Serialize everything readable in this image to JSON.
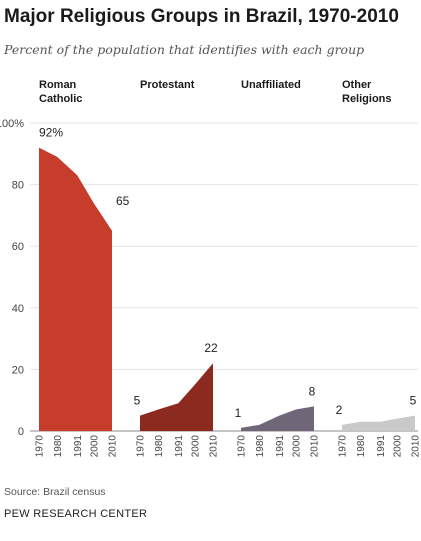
{
  "header": {
    "title": "Major Religious Groups in Brazil, 1970-2010",
    "subtitle": "Percent of the population that identifies with each group"
  },
  "footer": {
    "source": "Source: Brazil census",
    "org": "PEW RESEARCH CENTER"
  },
  "chart_data": {
    "type": "area",
    "title": "Major Religious Groups in Brazil, 1970-2010",
    "subtitle": "Percent of the population that identifies with each group",
    "x": [
      "1970",
      "1980",
      "1991",
      "2000",
      "2010"
    ],
    "ylim": [
      0,
      100
    ],
    "y_ticks": [
      "100%",
      "80",
      "60",
      "40",
      "20",
      "0"
    ],
    "y_tick_values": [
      100,
      80,
      60,
      40,
      20,
      0
    ],
    "grid": true,
    "series": [
      {
        "name": "Roman Catholic",
        "label_lines": [
          "Roman",
          "Catholic"
        ],
        "values": [
          92,
          89,
          83,
          74,
          65
        ],
        "start_label": "92%",
        "end_label": "65",
        "color": "#c63d2b"
      },
      {
        "name": "Protestant",
        "label_lines": [
          "Protestant"
        ],
        "values": [
          5,
          7,
          9,
          15,
          22
        ],
        "start_label": "5",
        "end_label": "22",
        "color": "#8c2a20"
      },
      {
        "name": "Unaffiliated",
        "label_lines": [
          "Unaffiliated"
        ],
        "values": [
          1,
          2,
          5,
          7,
          8
        ],
        "start_label": "1",
        "end_label": "8",
        "color": "#6f6677"
      },
      {
        "name": "Other Religions",
        "label_lines": [
          "Other",
          "Religions"
        ],
        "values": [
          2,
          3,
          3,
          4,
          5
        ],
        "start_label": "2",
        "end_label": "5",
        "color": "#c9c9c9"
      }
    ]
  }
}
